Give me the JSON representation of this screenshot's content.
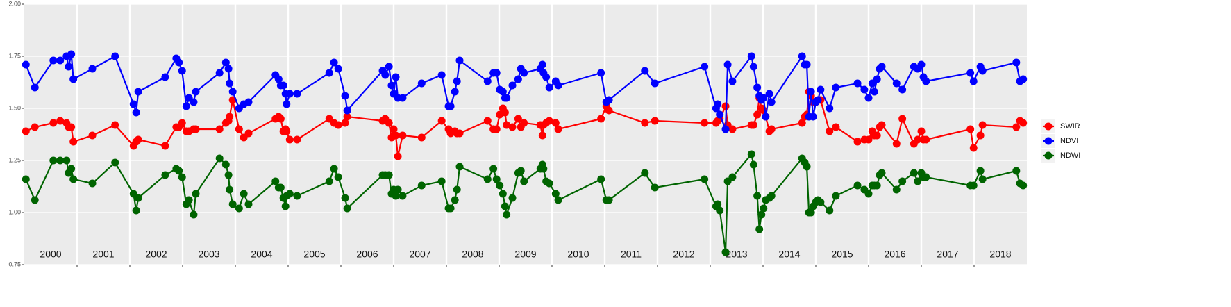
{
  "chart_data": {
    "type": "line",
    "x": [
      2000.03,
      2000.2,
      2000.55,
      2000.68,
      2000.8,
      2000.84,
      2000.89,
      2000.93,
      2001.29,
      2001.72,
      2002.07,
      2002.12,
      2002.16,
      2002.67,
      2002.88,
      2002.93,
      2002.99,
      2003.07,
      2003.12,
      2003.21,
      2003.25,
      2003.7,
      2003.82,
      2003.87,
      2003.89,
      2003.95,
      2004.07,
      2004.16,
      2004.25,
      2004.76,
      2004.82,
      2004.86,
      2004.91,
      2004.95,
      2004.97,
      2005.03,
      2005.17,
      2005.78,
      2005.87,
      2005.95,
      2006.08,
      2006.12,
      2006.79,
      2006.84,
      2006.91,
      2006.96,
      2007.0,
      2007.04,
      2007.08,
      2007.17,
      2007.53,
      2007.91,
      2008.04,
      2008.08,
      2008.16,
      2008.2,
      2008.25,
      2008.78,
      2008.89,
      2008.95,
      2009.01,
      2009.07,
      2009.11,
      2009.14,
      2009.25,
      2009.36,
      2009.41,
      2009.47,
      2009.78,
      2009.82,
      2009.84,
      2009.89,
      2009.95,
      2010.07,
      2010.12,
      2010.93,
      2011.03,
      2011.08,
      2011.76,
      2011.95,
      2012.89,
      2013.11,
      2013.14,
      2013.18,
      2013.29,
      2013.33,
      2013.42,
      2013.78,
      2013.82,
      2013.89,
      2013.93,
      2013.97,
      2014.01,
      2014.05,
      2014.12,
      2014.16,
      2014.74,
      2014.79,
      2014.83,
      2014.87,
      2014.91,
      2014.95,
      2015.0,
      2015.04,
      2015.09,
      2015.26,
      2015.38,
      2015.79,
      2015.92,
      2016.0,
      2016.07,
      2016.11,
      2016.16,
      2016.21,
      2016.25,
      2016.53,
      2016.64,
      2016.86,
      2016.93,
      2017.0,
      2017.04,
      2017.09,
      2017.93,
      2017.99,
      2018.12,
      2018.16,
      2018.8,
      2018.87,
      2018.93
    ],
    "series": [
      {
        "name": "SWIR",
        "color": "#ff0000",
        "values": [
          1.39,
          1.41,
          1.43,
          1.44,
          1.43,
          1.41,
          1.41,
          1.34,
          1.37,
          1.42,
          1.32,
          1.34,
          1.35,
          1.32,
          1.41,
          1.41,
          1.43,
          1.39,
          1.39,
          1.4,
          1.4,
          1.4,
          1.43,
          1.44,
          1.46,
          1.54,
          1.4,
          1.36,
          1.38,
          1.45,
          1.46,
          1.45,
          1.39,
          1.4,
          1.39,
          1.35,
          1.35,
          1.45,
          1.43,
          1.42,
          1.43,
          1.46,
          1.44,
          1.45,
          1.43,
          1.36,
          1.4,
          1.37,
          1.27,
          1.37,
          1.36,
          1.44,
          1.4,
          1.38,
          1.39,
          1.38,
          1.38,
          1.44,
          1.4,
          1.4,
          1.47,
          1.5,
          1.48,
          1.42,
          1.41,
          1.45,
          1.41,
          1.43,
          1.42,
          1.37,
          1.42,
          1.43,
          1.44,
          1.43,
          1.4,
          1.45,
          1.51,
          1.49,
          1.43,
          1.44,
          1.43,
          1.43,
          1.44,
          1.45,
          1.51,
          1.42,
          1.4,
          1.42,
          1.42,
          1.47,
          1.55,
          1.5,
          1.49,
          1.46,
          1.39,
          1.4,
          1.43,
          1.46,
          1.47,
          1.58,
          1.56,
          1.53,
          1.53,
          1.54,
          1.54,
          1.39,
          1.41,
          1.34,
          1.35,
          1.35,
          1.39,
          1.37,
          1.37,
          1.41,
          1.42,
          1.33,
          1.45,
          1.33,
          1.35,
          1.39,
          1.35,
          1.35,
          1.4,
          1.31,
          1.37,
          1.42,
          1.41,
          1.44,
          1.43
        ]
      },
      {
        "name": "NDVI",
        "color": "#0000ff",
        "values": [
          1.71,
          1.6,
          1.73,
          1.73,
          1.75,
          1.7,
          1.76,
          1.64,
          1.69,
          1.75,
          1.52,
          1.48,
          1.58,
          1.65,
          1.74,
          1.72,
          1.68,
          1.51,
          1.55,
          1.53,
          1.58,
          1.67,
          1.72,
          1.69,
          1.62,
          1.58,
          1.5,
          1.52,
          1.53,
          1.66,
          1.64,
          1.61,
          1.61,
          1.57,
          1.52,
          1.57,
          1.57,
          1.67,
          1.72,
          1.69,
          1.56,
          1.49,
          1.68,
          1.66,
          1.7,
          1.61,
          1.57,
          1.65,
          1.55,
          1.55,
          1.62,
          1.66,
          1.51,
          1.51,
          1.58,
          1.63,
          1.73,
          1.63,
          1.67,
          1.67,
          1.59,
          1.58,
          1.55,
          1.55,
          1.61,
          1.64,
          1.69,
          1.67,
          1.69,
          1.71,
          1.67,
          1.65,
          1.6,
          1.63,
          1.61,
          1.67,
          1.53,
          1.54,
          1.68,
          1.62,
          1.7,
          1.5,
          1.52,
          1.47,
          1.4,
          1.71,
          1.63,
          1.75,
          1.7,
          1.6,
          1.56,
          1.54,
          1.55,
          1.46,
          1.57,
          1.53,
          1.75,
          1.71,
          1.71,
          1.46,
          1.58,
          1.46,
          1.53,
          1.54,
          1.59,
          1.5,
          1.6,
          1.62,
          1.59,
          1.55,
          1.62,
          1.58,
          1.64,
          1.69,
          1.7,
          1.62,
          1.59,
          1.7,
          1.69,
          1.71,
          1.65,
          1.63,
          1.67,
          1.63,
          1.7,
          1.68,
          1.72,
          1.63,
          1.64
        ]
      },
      {
        "name": "NDWI",
        "color": "#006400",
        "values": [
          1.16,
          1.06,
          1.25,
          1.25,
          1.25,
          1.19,
          1.21,
          1.16,
          1.14,
          1.24,
          1.09,
          1.01,
          1.07,
          1.18,
          1.21,
          1.2,
          1.17,
          1.04,
          1.06,
          0.99,
          1.09,
          1.26,
          1.23,
          1.18,
          1.11,
          1.04,
          1.02,
          1.09,
          1.04,
          1.15,
          1.12,
          1.12,
          1.07,
          1.03,
          1.08,
          1.09,
          1.08,
          1.15,
          1.21,
          1.17,
          1.07,
          1.02,
          1.18,
          1.18,
          1.18,
          1.09,
          1.11,
          1.08,
          1.11,
          1.08,
          1.13,
          1.15,
          1.02,
          1.02,
          1.06,
          1.11,
          1.22,
          1.16,
          1.21,
          1.16,
          1.13,
          1.09,
          1.03,
          0.99,
          1.07,
          1.19,
          1.2,
          1.15,
          1.21,
          1.23,
          1.21,
          1.15,
          1.14,
          1.09,
          1.06,
          1.16,
          1.06,
          1.06,
          1.19,
          1.12,
          1.16,
          1.03,
          1.04,
          1.01,
          0.81,
          1.15,
          1.17,
          1.28,
          1.23,
          1.08,
          0.92,
          0.99,
          1.02,
          1.06,
          1.07,
          1.08,
          1.26,
          1.24,
          1.22,
          1.0,
          1.0,
          1.03,
          1.05,
          1.06,
          1.05,
          1.01,
          1.08,
          1.13,
          1.11,
          1.09,
          1.13,
          1.13,
          1.13,
          1.18,
          1.19,
          1.11,
          1.15,
          1.19,
          1.15,
          1.19,
          1.17,
          1.17,
          1.13,
          1.13,
          1.2,
          1.16,
          1.2,
          1.14,
          1.13
        ]
      }
    ],
    "xlim": [
      2000,
      2019
    ],
    "xticks": [
      2001,
      2002,
      2003,
      2004,
      2005,
      2006,
      2007,
      2008,
      2009,
      2010,
      2011,
      2012,
      2013,
      2014,
      2015,
      2016,
      2017,
      2018
    ],
    "year_labels": [
      "2000",
      "2001",
      "2002",
      "2003",
      "2004",
      "2005",
      "2006",
      "2007",
      "2008",
      "2009",
      "2010",
      "2011",
      "2012",
      "2013",
      "2014",
      "2015",
      "2016",
      "2017",
      "2018"
    ],
    "ylim": [
      0.75,
      2.0
    ],
    "yticks": [
      {
        "value": 0.75,
        "label": "0.75"
      },
      {
        "value": 1.0,
        "label": "1.00"
      },
      {
        "value": 1.25,
        "label": "1.25"
      },
      {
        "value": 1.5,
        "label": "1.50"
      },
      {
        "value": 1.75,
        "label": "1.75"
      },
      {
        "value": 2.0,
        "label": "2.00"
      }
    ],
    "grid": true,
    "legend": "right"
  }
}
